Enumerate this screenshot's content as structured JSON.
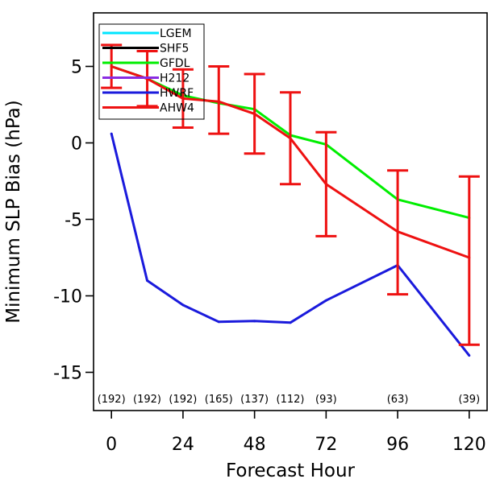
{
  "chart_data": {
    "type": "line",
    "title": "",
    "xlabel": "Forecast Hour",
    "ylabel": "Minimum SLP Bias (hPa)",
    "xlim": [
      -6,
      126
    ],
    "ylim": [
      -17.5,
      8.5
    ],
    "x_ticks": [
      0,
      24,
      48,
      72,
      96,
      120
    ],
    "y_ticks": [
      5,
      0,
      -5,
      -10,
      -15
    ],
    "grid": false,
    "legend_position": "top-left",
    "legend": [
      {
        "name": "LGEM",
        "color": "#00e5ff"
      },
      {
        "name": "SHF5",
        "color": "#000000"
      },
      {
        "name": "GFDL",
        "color": "#00ee00"
      },
      {
        "name": "H212",
        "color": "#8a2be2"
      },
      {
        "name": "HWRF",
        "color": "#1a1adc"
      },
      {
        "name": "AHW4",
        "color": "#ee1111"
      }
    ],
    "series": [
      {
        "name": "HWRF",
        "color": "#1a1adc",
        "x": [
          0,
          12,
          24,
          36,
          48,
          60,
          72,
          96,
          120
        ],
        "y": [
          0.6,
          -9.0,
          -10.6,
          -11.7,
          -11.65,
          -11.75,
          -10.3,
          -8.0,
          -13.9
        ]
      },
      {
        "name": "GFDL",
        "color": "#00ee00",
        "x": [
          0,
          12,
          24,
          36,
          48,
          60,
          72,
          96,
          120
        ],
        "y": [
          5.0,
          4.2,
          3.1,
          2.6,
          2.2,
          0.5,
          -0.1,
          -3.7,
          -4.9
        ]
      },
      {
        "name": "AHW4",
        "color": "#ee1111",
        "x": [
          0,
          12,
          24,
          36,
          48,
          60,
          72,
          96,
          120
        ],
        "y": [
          5.0,
          4.2,
          2.9,
          2.7,
          1.9,
          0.3,
          -2.7,
          -5.8,
          -7.5
        ],
        "error_low": [
          3.6,
          2.4,
          1.0,
          0.6,
          -0.7,
          -2.7,
          -6.1,
          -9.9,
          -13.2
        ],
        "error_high": [
          6.4,
          6.0,
          4.8,
          5.0,
          4.5,
          3.3,
          0.7,
          -1.8,
          -2.2
        ]
      }
    ],
    "sample_counts": [
      {
        "x": 0,
        "label": "(192)"
      },
      {
        "x": 12,
        "label": "(192)"
      },
      {
        "x": 24,
        "label": "(192)"
      },
      {
        "x": 36,
        "label": "(165)"
      },
      {
        "x": 48,
        "label": "(137)"
      },
      {
        "x": 60,
        "label": "(112)"
      },
      {
        "x": 72,
        "label": "(93)"
      },
      {
        "x": 96,
        "label": "(63)"
      },
      {
        "x": 120,
        "label": "(39)"
      }
    ]
  }
}
